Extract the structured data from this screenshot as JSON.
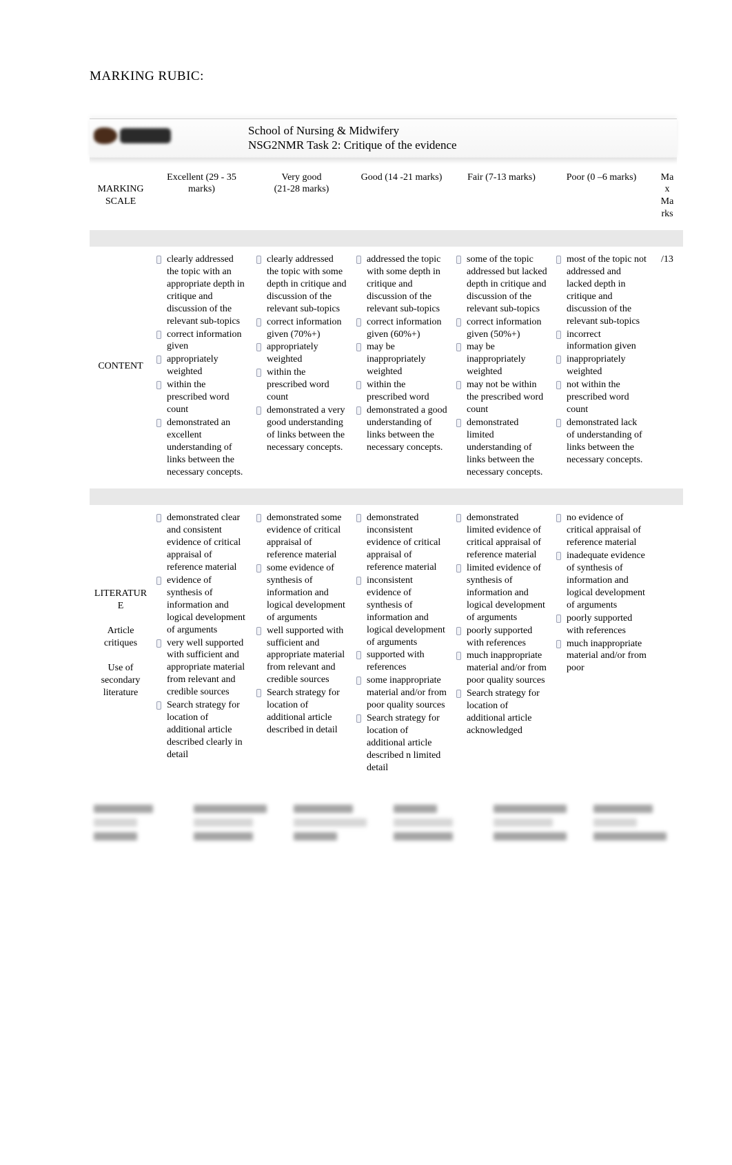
{
  "heading": "MARKING RUBIC:",
  "banner": {
    "line1": "School of Nursing & Midwifery",
    "line2": "NSG2NMR Task 2: Critique of the evidence"
  },
  "columns": {
    "label": "MARKING SCALE",
    "excellent": "Excellent (29 - 35 marks)",
    "verygood": "Very good\n(21-28 marks)",
    "good": "Good (14 -21 marks)",
    "fair": "Fair (7-13 marks)",
    "poor": "Poor (0 –6 marks)",
    "marks": "Ma\nx\nMa\nrks"
  },
  "rows": [
    {
      "label": "CONTENT",
      "marks": "/13",
      "excellent": [
        "clearly addressed the topic with an appropriate depth in critique and discussion of the relevant sub-topics",
        "correct information given",
        "appropriately weighted",
        " within the prescribed word count",
        "demonstrated an excellent understanding of links between the necessary concepts."
      ],
      "verygood": [
        "clearly addressed the topic with some depth in critique and discussion of the relevant sub-topics",
        "correct information given (70%+)",
        "appropriately weighted",
        "within the prescribed word count",
        "demonstrated a very good understanding of links between the necessary concepts."
      ],
      "good": [
        "addressed the topic with some depth in critique and discussion of the relevant sub-topics",
        "correct information given (60%+)",
        "may be inappropriately weighted",
        "within the prescribed word",
        "demonstrated a good understanding of links between the necessary concepts."
      ],
      "fair": [
        "some of the topic addressed but lacked depth in critique and discussion of the relevant sub-topics",
        "correct information given (50%+)",
        "may be inappropriately weighted",
        "may not be within the prescribed word count",
        "demonstrated limited understanding of links between the necessary concepts."
      ],
      "poor": [
        "most of the topic not addressed and lacked depth in critique and discussion of the relevant sub-topics",
        "incorrect information given",
        "inappropriately weighted",
        "not within the prescribed word count",
        "demonstrated lack of understanding of links between the necessary concepts."
      ]
    },
    {
      "label": "LITERATUR\nE\n\nArticle critiques\n\nUse of secondary literature",
      "marks": "",
      "excellent": [
        "demonstrated clear and consistent evidence of critical appraisal of reference material",
        "evidence of synthesis of information and logical development of arguments",
        "very well supported with sufficient and appropriate material from relevant and credible sources",
        "Search strategy for location of additional article described clearly in detail"
      ],
      "verygood": [
        "demonstrated some evidence of critical appraisal of reference material",
        "some evidence of synthesis of information and logical development of arguments",
        "well supported with sufficient and appropriate material from relevant and credible sources",
        "Search strategy for location of additional article described in detail"
      ],
      "good": [
        "demonstrated inconsistent evidence of critical appraisal of reference material",
        "inconsistent evidence of synthesis of information and logical development of arguments",
        "supported with references",
        "some inappropriate material and/or from poor quality sources",
        "Search strategy for location of additional article described n limited detail"
      ],
      "fair": [
        "demonstrated limited evidence of critical appraisal of reference material",
        "limited evidence of synthesis of information and logical development of arguments",
        "poorly supported with references",
        "much inappropriate material and/or from poor quality sources",
        "Search strategy for location of additional article acknowledged"
      ],
      "poor": [
        "no evidence of critical appraisal of reference material",
        "inadequate evidence of synthesis of information and logical development of arguments",
        "poorly supported with references",
        " much inappropriate material and/or from poor"
      ]
    }
  ],
  "style": {
    "page_bg": "#ffffff",
    "text_color": "#000000",
    "bullet_border": "#9aa0b4",
    "bullet_fill": "#f2f3f7",
    "banner_grad_top": "#fdfdfd",
    "banner_grad_bot": "#f5f5f5",
    "body_font_pt": 14,
    "heading_font_pt": 19,
    "header_font_pt": 17
  }
}
